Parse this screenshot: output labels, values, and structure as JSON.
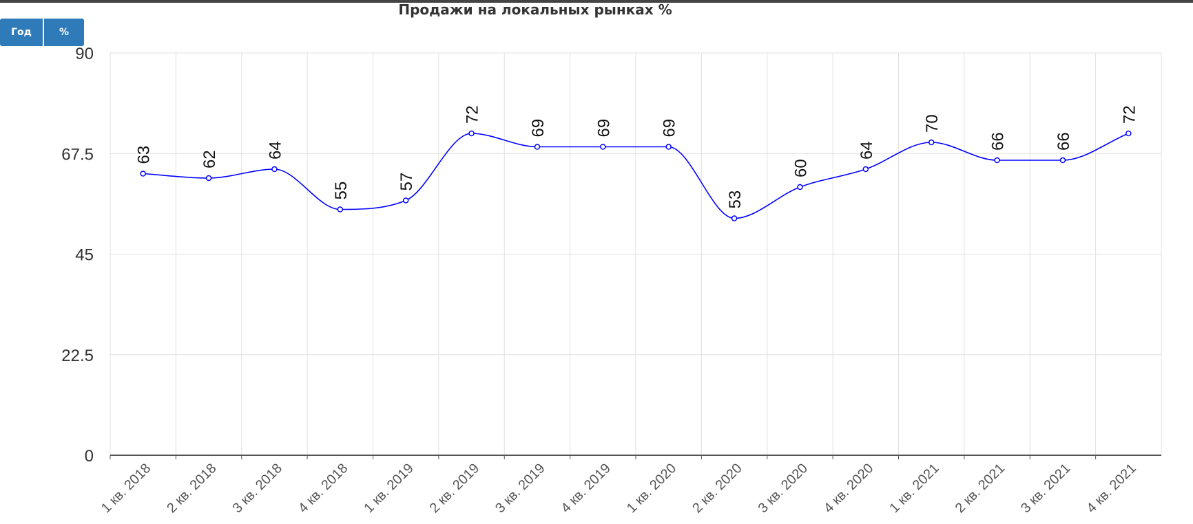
{
  "controls": {
    "year_label": "Год",
    "percent_label": "%"
  },
  "colors": {
    "line": "#0000ff",
    "button": "#2f7ab9",
    "grid": "#e0e0e0",
    "axis": "#555555"
  },
  "chart_data": {
    "type": "line",
    "title": "Продажи на локальных рынках %",
    "xlabel": "",
    "ylabel": "",
    "categories": [
      "1 кв. 2018",
      "2 кв. 2018",
      "3 кв. 2018",
      "4 кв. 2018",
      "1 кв. 2019",
      "2 кв. 2019",
      "3 кв. 2019",
      "4 кв. 2019",
      "1 кв. 2020",
      "2 кв. 2020",
      "3 кв. 2020",
      "4 кв. 2020",
      "1 кв. 2021",
      "2 кв. 2021",
      "3 кв. 2021",
      "4 кв. 2021"
    ],
    "series": [
      {
        "values": [
          63,
          62,
          64,
          55,
          57,
          72,
          69,
          69,
          69,
          53,
          60,
          64,
          70,
          66,
          66,
          72
        ]
      }
    ],
    "ylim": [
      0,
      90
    ],
    "yticks": [
      "0",
      "22.5",
      "45",
      "67.5",
      "90"
    ],
    "grid": true,
    "data_labels": true,
    "smooth": true
  }
}
